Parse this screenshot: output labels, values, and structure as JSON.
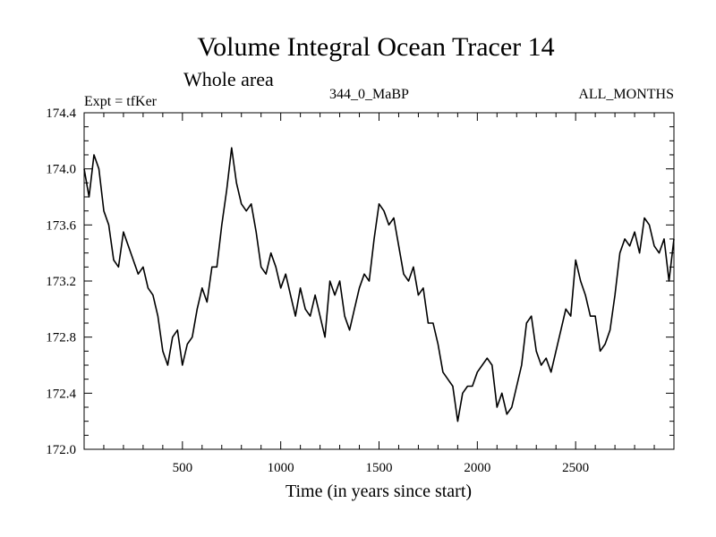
{
  "chart_data": {
    "type": "line",
    "title": "Volume Integral Ocean Tracer 14",
    "subtitle": "Whole area",
    "left_label": "Expt = tfKer",
    "center_label": "344_0_MaBP",
    "right_label": "ALL_MONTHS",
    "xlabel": "Time (in years since start)",
    "ylabel": "",
    "xlim": [
      0,
      3000
    ],
    "ylim": [
      172.0,
      174.4
    ],
    "x_ticks": [
      500,
      1000,
      1500,
      2000,
      2500
    ],
    "x_tick_labels": [
      "500",
      "1000",
      "1500",
      "2000",
      "2500"
    ],
    "y_ticks": [
      172.0,
      172.4,
      172.8,
      173.2,
      173.6,
      174.0,
      174.4
    ],
    "y_tick_labels": [
      "172.0",
      "172.4",
      "172.8",
      "173.2",
      "173.6",
      "174.0",
      "174.4"
    ],
    "grid": false,
    "line_color": "#000000",
    "series": [
      {
        "x": [
          0,
          25,
          50,
          75,
          100,
          125,
          150,
          175,
          200,
          225,
          250,
          275,
          300,
          325,
          350,
          375,
          400,
          425,
          450,
          475,
          500,
          525,
          550,
          575,
          600,
          625,
          650,
          675,
          700,
          725,
          750,
          775,
          800,
          825,
          850,
          875,
          900,
          925,
          950,
          975,
          1000,
          1025,
          1050,
          1075,
          1100,
          1125,
          1150,
          1175,
          1200,
          1225,
          1250,
          1275,
          1300,
          1325,
          1350,
          1375,
          1400,
          1425,
          1450,
          1475,
          1500,
          1525,
          1550,
          1575,
          1600,
          1625,
          1650,
          1675,
          1700,
          1725,
          1750,
          1775,
          1800,
          1825,
          1850,
          1875,
          1900,
          1925,
          1950,
          1975,
          2000,
          2025,
          2050,
          2075,
          2100,
          2125,
          2150,
          2175,
          2200,
          2225,
          2250,
          2275,
          2300,
          2325,
          2350,
          2375,
          2400,
          2425,
          2450,
          2475,
          2500,
          2525,
          2550,
          2575,
          2600,
          2625,
          2650,
          2675,
          2700,
          2725,
          2750,
          2775,
          2800,
          2825,
          2850,
          2875,
          2900,
          2925,
          2950,
          2975,
          3000
        ],
        "values": [
          174.0,
          173.8,
          174.1,
          174.0,
          173.7,
          173.6,
          173.35,
          173.3,
          173.55,
          173.45,
          173.35,
          173.25,
          173.3,
          173.15,
          173.1,
          172.95,
          172.7,
          172.6,
          172.8,
          172.85,
          172.6,
          172.75,
          172.8,
          173.0,
          173.15,
          173.05,
          173.3,
          173.3,
          173.6,
          173.85,
          174.15,
          173.9,
          173.75,
          173.7,
          173.75,
          173.55,
          173.3,
          173.25,
          173.4,
          173.3,
          173.15,
          173.25,
          173.1,
          172.95,
          173.15,
          173.0,
          172.95,
          173.1,
          172.95,
          172.8,
          173.2,
          173.1,
          173.2,
          172.95,
          172.85,
          173.0,
          173.15,
          173.25,
          173.2,
          173.5,
          173.75,
          173.7,
          173.6,
          173.65,
          173.45,
          173.25,
          173.2,
          173.3,
          173.1,
          173.15,
          172.9,
          172.9,
          172.75,
          172.55,
          172.5,
          172.45,
          172.2,
          172.4,
          172.45,
          172.45,
          172.55,
          172.6,
          172.65,
          172.6,
          172.3,
          172.4,
          172.25,
          172.3,
          172.45,
          172.6,
          172.9,
          172.95,
          172.7,
          172.6,
          172.65,
          172.55,
          172.7,
          172.85,
          173.0,
          172.95,
          173.35,
          173.2,
          173.1,
          172.95,
          172.95,
          172.7,
          172.75,
          172.85,
          173.1,
          173.4,
          173.5,
          173.45,
          173.55,
          173.4,
          173.65,
          173.6,
          173.45,
          173.4,
          173.5,
          173.2,
          173.5
        ]
      }
    ]
  }
}
